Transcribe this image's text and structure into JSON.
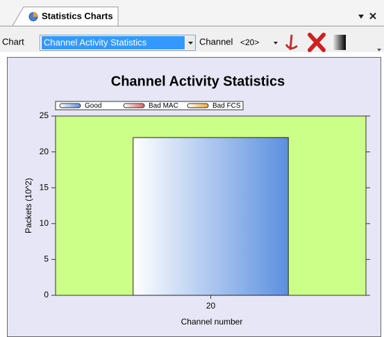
{
  "tab": {
    "title": "Statistics Charts"
  },
  "toolbar": {
    "chart_label": "Chart",
    "chart_select": "Channel Activity Statistics",
    "channel_label": "Channel",
    "channel_select": "<20>"
  },
  "chart_data": {
    "type": "bar",
    "stacked": true,
    "title": "Channel Activity Statistics",
    "categories": [
      "20"
    ],
    "series": [
      {
        "name": "Good",
        "color": "#5b8fe0",
        "values": [
          22
        ]
      },
      {
        "name": "Bad MAC",
        "color": "#e06060",
        "values": [
          0
        ]
      },
      {
        "name": "Bad FCS",
        "color": "#f0a830",
        "values": [
          0
        ]
      }
    ],
    "xlabel": "Channel number",
    "ylabel": "Packets (10^2)",
    "ylim": [
      0,
      25
    ],
    "yticks": [
      0,
      5,
      10,
      15,
      20,
      25
    ],
    "grid": false,
    "legend": "top-left",
    "plot_color": "#ccff88",
    "background": "#e6e6f6"
  }
}
